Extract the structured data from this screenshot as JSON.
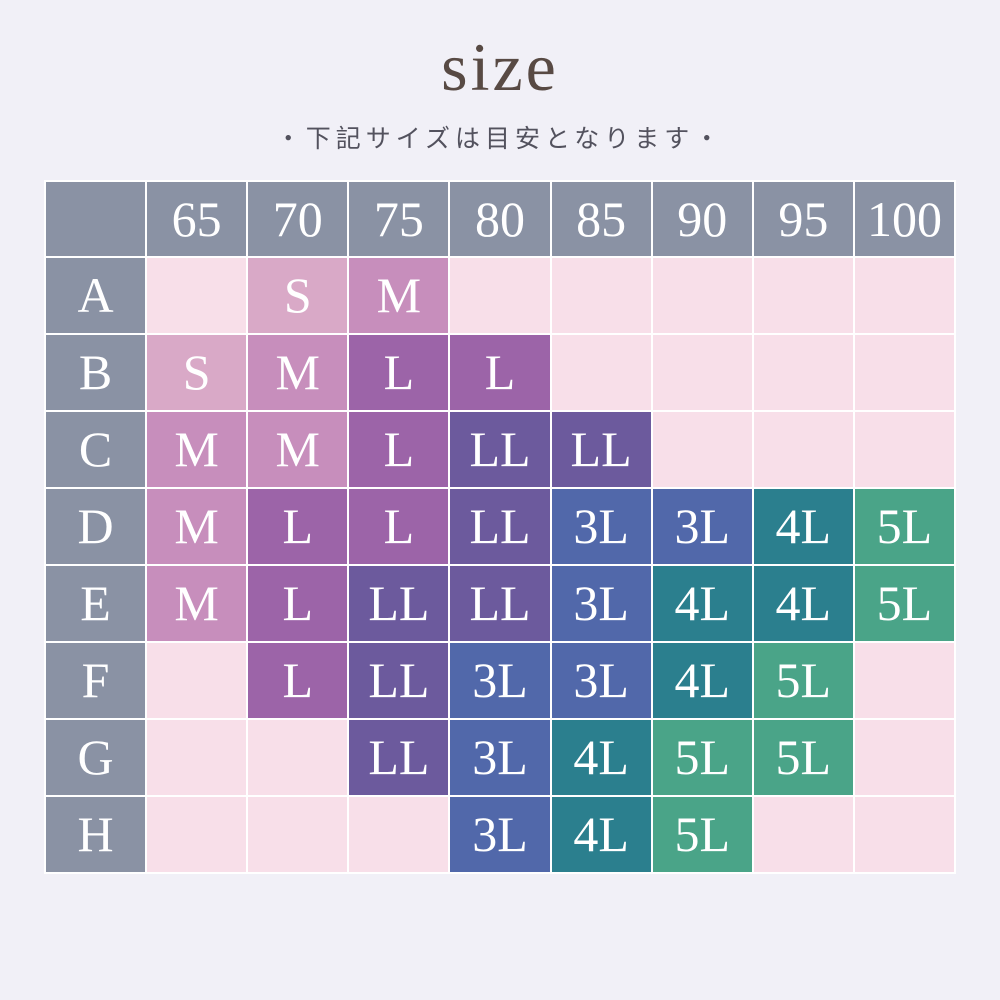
{
  "page": {
    "background": "#f1f0f7"
  },
  "header": {
    "title": "size",
    "subtitle": "・下記サイズは目安となります・",
    "title_color": "#584a44",
    "subtitle_color": "#53525e"
  },
  "palette": {
    "header_bg": "#8a92a4",
    "grid_line": "#ffffff",
    "cell_text": "#ffffff",
    "empty": "#f8dfe9",
    "S": "#d9a9c7",
    "M": "#c78ebc",
    "L": "#9c64a8",
    "LL": "#6c5a9d",
    "3L": "#5168aa",
    "4L": "#2b7f8e",
    "5L": "#4aa488"
  },
  "table": {
    "corner": "",
    "columns": [
      "65",
      "70",
      "75",
      "80",
      "85",
      "90",
      "95",
      "100"
    ],
    "rows": [
      {
        "label": "A",
        "cells": [
          {
            "label": "",
            "color": "#f8dfe9"
          },
          {
            "label": "S",
            "color": "#d9a9c7"
          },
          {
            "label": "M",
            "color": "#c78ebc"
          },
          {
            "label": "",
            "color": "#f8dfe9"
          },
          {
            "label": "",
            "color": "#f8dfe9"
          },
          {
            "label": "",
            "color": "#f8dfe9"
          },
          {
            "label": "",
            "color": "#f8dfe9"
          },
          {
            "label": "",
            "color": "#f8dfe9"
          }
        ]
      },
      {
        "label": "B",
        "cells": [
          {
            "label": "S",
            "color": "#d9a9c7"
          },
          {
            "label": "M",
            "color": "#c78ebc"
          },
          {
            "label": "L",
            "color": "#9c64a8"
          },
          {
            "label": "L",
            "color": "#9c64a8"
          },
          {
            "label": "",
            "color": "#f8dfe9"
          },
          {
            "label": "",
            "color": "#f8dfe9"
          },
          {
            "label": "",
            "color": "#f8dfe9"
          },
          {
            "label": "",
            "color": "#f8dfe9"
          }
        ]
      },
      {
        "label": "C",
        "cells": [
          {
            "label": "M",
            "color": "#c78ebc"
          },
          {
            "label": "M",
            "color": "#c78ebc"
          },
          {
            "label": "L",
            "color": "#9c64a8"
          },
          {
            "label": "LL",
            "color": "#6c5a9d"
          },
          {
            "label": "LL",
            "color": "#6c5a9d"
          },
          {
            "label": "",
            "color": "#f8dfe9"
          },
          {
            "label": "",
            "color": "#f8dfe9"
          },
          {
            "label": "",
            "color": "#f8dfe9"
          }
        ]
      },
      {
        "label": "D",
        "cells": [
          {
            "label": "M",
            "color": "#c78ebc"
          },
          {
            "label": "L",
            "color": "#9c64a8"
          },
          {
            "label": "L",
            "color": "#9c64a8"
          },
          {
            "label": "LL",
            "color": "#6c5a9d"
          },
          {
            "label": "3L",
            "color": "#5168aa"
          },
          {
            "label": "3L",
            "color": "#5168aa"
          },
          {
            "label": "4L",
            "color": "#2b7f8e"
          },
          {
            "label": "5L",
            "color": "#4aa488"
          }
        ]
      },
      {
        "label": "E",
        "cells": [
          {
            "label": "M",
            "color": "#c78ebc"
          },
          {
            "label": "L",
            "color": "#9c64a8"
          },
          {
            "label": "LL",
            "color": "#6c5a9d"
          },
          {
            "label": "LL",
            "color": "#6c5a9d"
          },
          {
            "label": "3L",
            "color": "#5168aa"
          },
          {
            "label": "4L",
            "color": "#2b7f8e"
          },
          {
            "label": "4L",
            "color": "#2b7f8e"
          },
          {
            "label": "5L",
            "color": "#4aa488"
          }
        ]
      },
      {
        "label": "F",
        "cells": [
          {
            "label": "",
            "color": "#f8dfe9"
          },
          {
            "label": "L",
            "color": "#9c64a8"
          },
          {
            "label": "LL",
            "color": "#6c5a9d"
          },
          {
            "label": "3L",
            "color": "#5168aa"
          },
          {
            "label": "3L",
            "color": "#5168aa"
          },
          {
            "label": "4L",
            "color": "#2b7f8e"
          },
          {
            "label": "5L",
            "color": "#4aa488"
          },
          {
            "label": "",
            "color": "#f8dfe9"
          }
        ]
      },
      {
        "label": "G",
        "cells": [
          {
            "label": "",
            "color": "#f8dfe9"
          },
          {
            "label": "",
            "color": "#f8dfe9"
          },
          {
            "label": "LL",
            "color": "#6c5a9d"
          },
          {
            "label": "3L",
            "color": "#5168aa"
          },
          {
            "label": "4L",
            "color": "#2b7f8e"
          },
          {
            "label": "5L",
            "color": "#4aa488"
          },
          {
            "label": "5L",
            "color": "#4aa488"
          },
          {
            "label": "",
            "color": "#f8dfe9"
          }
        ]
      },
      {
        "label": "H",
        "cells": [
          {
            "label": "",
            "color": "#f8dfe9"
          },
          {
            "label": "",
            "color": "#f8dfe9"
          },
          {
            "label": "",
            "color": "#f8dfe9"
          },
          {
            "label": "3L",
            "color": "#5168aa"
          },
          {
            "label": "4L",
            "color": "#2b7f8e"
          },
          {
            "label": "5L",
            "color": "#4aa488"
          },
          {
            "label": "",
            "color": "#f8dfe9"
          },
          {
            "label": "",
            "color": "#f8dfe9"
          }
        ]
      }
    ]
  }
}
